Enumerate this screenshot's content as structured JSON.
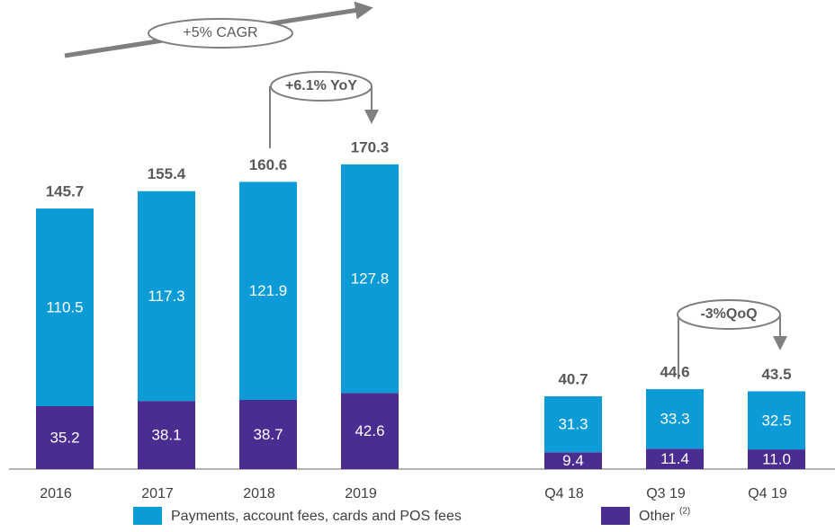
{
  "chart_data": {
    "type": "stacked_bar",
    "categories": [
      "2016",
      "2017",
      "2018",
      "2019",
      "Q4 18",
      "Q3 19",
      "Q4 19"
    ],
    "series": [
      {
        "name": "Other",
        "legend_note": "(2)",
        "color": "#4b2c91",
        "values": [
          35.2,
          38.1,
          38.7,
          42.6,
          9.4,
          11.4,
          11.0
        ],
        "value_labels": [
          "35.2",
          "38.1",
          "38.7",
          "42.6",
          "9.4",
          "11.4",
          "11.0"
        ]
      },
      {
        "name": "Payments, account fees, cards and POS fees",
        "color": "#0b9bd7",
        "values": [
          110.5,
          117.3,
          121.9,
          127.8,
          31.3,
          33.3,
          32.5
        ]
      }
    ],
    "totals": [
      145.7,
      155.4,
      160.6,
      170.3,
      40.7,
      44.6,
      43.5
    ],
    "annotations": [
      "+5% CAGR",
      "+6.1% YoY",
      "-3%QoQ"
    ]
  }
}
